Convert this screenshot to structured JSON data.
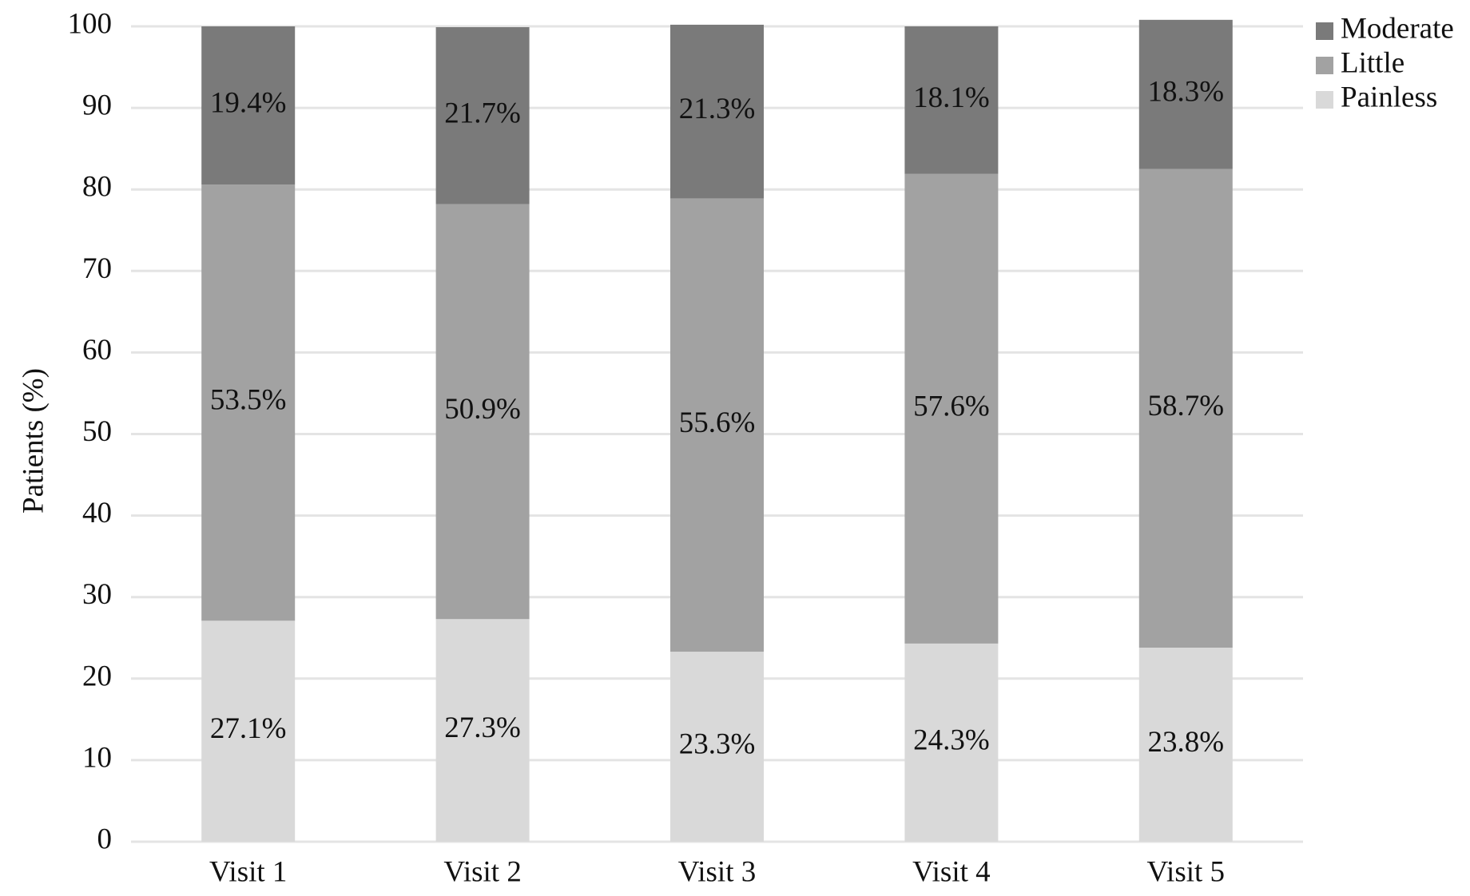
{
  "chart_data": {
    "type": "stacked_bar",
    "y_label": "Patients (%)",
    "categories": [
      "Visit 1",
      "Visit 2",
      "Visit 3",
      "Visit 4",
      "Visit 5"
    ],
    "series": [
      {
        "name": "Painless",
        "color": "#d9d9d9",
        "values": [
          27.1,
          27.3,
          23.3,
          24.3,
          23.8
        ],
        "value_labels": [
          "27.1%",
          "27.3%",
          "23.3%",
          "24.3%",
          "23.8%"
        ]
      },
      {
        "name": "Little",
        "color": "#a2a2a2",
        "values": [
          53.5,
          50.9,
          55.6,
          57.6,
          58.7
        ],
        "value_labels": [
          "53.5%",
          "50.9%",
          "55.6%",
          "57.6%",
          "58.7%"
        ]
      },
      {
        "name": "Moderate",
        "color": "#7a7a7a",
        "values": [
          19.4,
          21.7,
          21.3,
          18.1,
          18.3
        ],
        "value_labels": [
          "19.4%",
          "21.7%",
          "21.3%",
          "18.1%",
          "18.3%"
        ]
      }
    ],
    "ylim": [
      0,
      100
    ],
    "yticks": [
      0,
      10,
      20,
      30,
      40,
      50,
      60,
      70,
      80,
      90,
      100
    ],
    "grid": true,
    "legend": "top-right"
  }
}
